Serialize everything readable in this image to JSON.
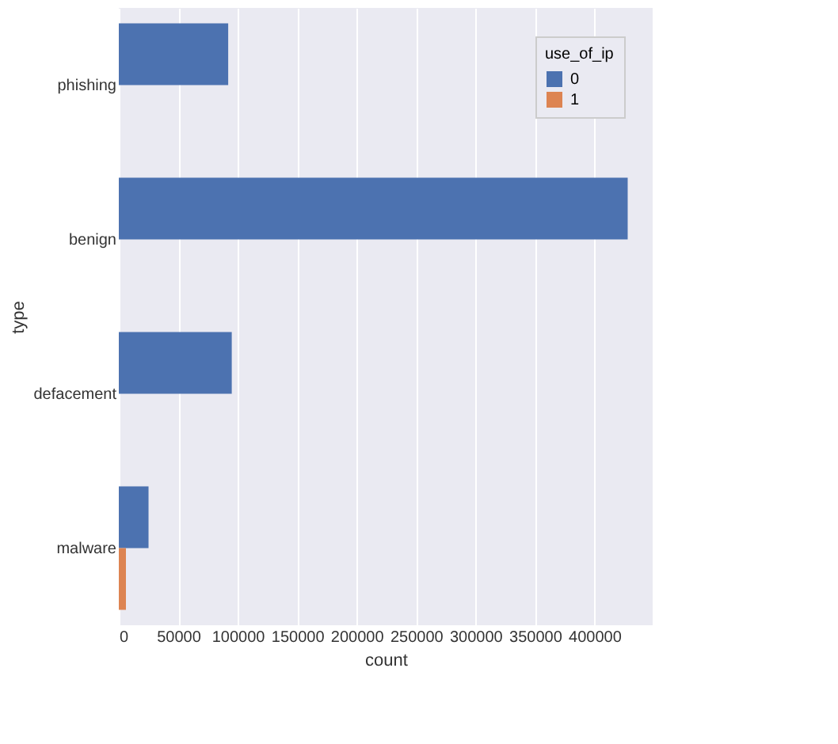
{
  "chart_data": {
    "type": "bar",
    "orientation": "horizontal",
    "xlabel": "count",
    "ylabel": "type",
    "legend_title": "use_of_ip",
    "categories": [
      "phishing",
      "benign",
      "defacement",
      "malware"
    ],
    "series": [
      {
        "name": "0",
        "color": "#4c72b0",
        "values": [
          92000,
          428000,
          95000,
          25000
        ]
      },
      {
        "name": "1",
        "color": "#dd8452",
        "values": [
          0,
          0,
          0,
          6000
        ]
      }
    ],
    "xlim": [
      0,
      449000
    ],
    "xticks": [
      0,
      50000,
      100000,
      150000,
      200000,
      250000,
      300000,
      350000,
      400000
    ],
    "grid": "x",
    "legend": "top right"
  }
}
